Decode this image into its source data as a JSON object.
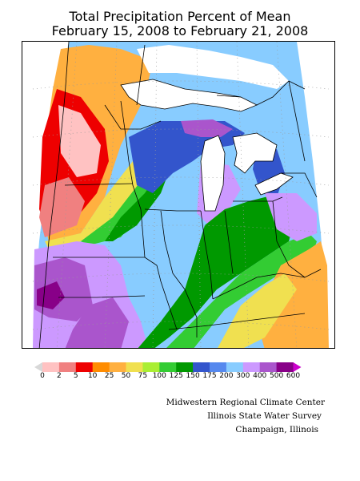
{
  "title": {
    "line1": "Total Precipitation Percent of Mean",
    "line2": "February 15, 2008 to February 21, 2008"
  },
  "legend": {
    "labels": [
      "0",
      "2",
      "5",
      "10",
      "25",
      "50",
      "75",
      "100",
      "125",
      "150",
      "175",
      "200",
      "300",
      "400",
      "500",
      "600"
    ],
    "colors": [
      "#d8d8d8",
      "#ffc2c2",
      "#f08080",
      "#ee0000",
      "#ff8c00",
      "#ffb040",
      "#f0e050",
      "#aaee33",
      "#33cc33",
      "#009900",
      "#3355cc",
      "#5588ee",
      "#88ccff",
      "#cc99ff",
      "#aa55cc",
      "#880088",
      "#cc00cc"
    ]
  },
  "credits": {
    "line1": "Midwestern Regional Climate Center",
    "line2": "Illinois State Water Survey",
    "line3": "Champaign, Illinois"
  },
  "map": {
    "colors": {
      "light_blue": "#88ccff",
      "mid_blue": "#5588ee",
      "dark_blue": "#3355cc",
      "lavender": "#cc99ff",
      "purple": "#aa55cc",
      "dark_purple": "#880088",
      "dark_green": "#009900",
      "green": "#33cc33",
      "light_green": "#aaee33",
      "yellow": "#f0e050",
      "light_orange": "#ffb040",
      "orange": "#ff8c00",
      "red": "#ee0000",
      "salmon": "#f08080",
      "pink": "#ffc2c2",
      "water": "#ffffff",
      "grid": "#999999",
      "border": "#000000"
    }
  }
}
